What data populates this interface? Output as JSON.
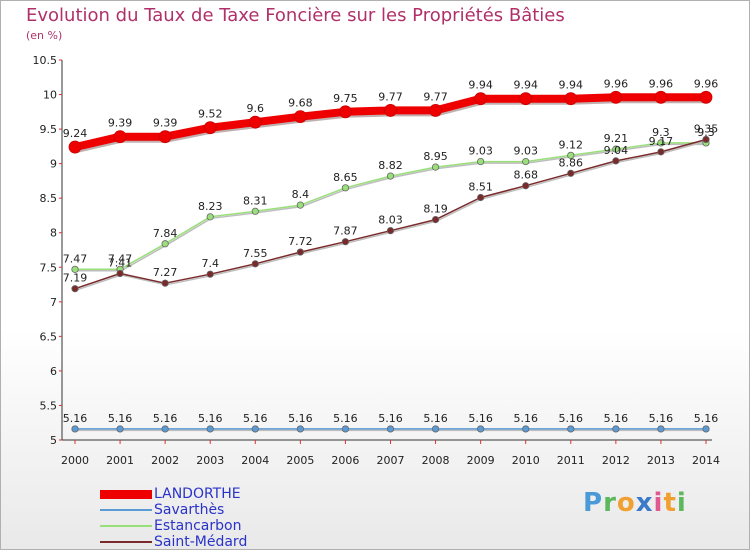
{
  "chart_data": {
    "type": "line",
    "title": "Evolution du Taux de Taxe Foncière sur les Propriétés Bâties",
    "subtitle": "(en %)",
    "x": [
      "2000",
      "2001",
      "2002",
      "2003",
      "2004",
      "2005",
      "2006",
      "2007",
      "2008",
      "2009",
      "2010",
      "2011",
      "2012",
      "2013",
      "2014"
    ],
    "ylim": [
      5,
      10.5
    ],
    "yticks": [
      "5",
      "5.5",
      "6",
      "6.5",
      "7",
      "7.5",
      "8",
      "8.5",
      "9",
      "9.5",
      "10",
      "10.5"
    ],
    "grid": false,
    "legend_position": "bottom-left",
    "series": [
      {
        "name": "LANDORTHE",
        "color": "#ee0000",
        "values": [
          9.24,
          9.39,
          9.39,
          9.52,
          9.6,
          9.68,
          9.75,
          9.77,
          9.77,
          9.94,
          9.94,
          9.94,
          9.96,
          9.96,
          9.96
        ],
        "labels": [
          "9.24",
          "9.39",
          "9.39",
          "9.52",
          "9.6",
          "9.68",
          "9.75",
          "9.77",
          "9.77",
          "9.94",
          "9.94",
          "9.94",
          "9.96",
          "9.96",
          "9.96"
        ]
      },
      {
        "name": "Savarthès",
        "color": "#5b9bd5",
        "values": [
          5.16,
          5.16,
          5.16,
          5.16,
          5.16,
          5.16,
          5.16,
          5.16,
          5.16,
          5.16,
          5.16,
          5.16,
          5.16,
          5.16,
          5.16
        ],
        "labels": [
          "5.16",
          "5.16",
          "5.16",
          "5.16",
          "5.16",
          "5.16",
          "5.16",
          "5.16",
          "5.16",
          "5.16",
          "5.16",
          "5.16",
          "5.16",
          "5.16",
          "5.16"
        ]
      },
      {
        "name": "Estancarbon",
        "color": "#99e07a",
        "values": [
          7.47,
          7.47,
          7.84,
          8.23,
          8.31,
          8.4,
          8.65,
          8.82,
          8.95,
          9.03,
          9.03,
          9.12,
          9.21,
          9.3,
          9.3
        ],
        "labels": [
          "7.47",
          "7.47",
          "7.84",
          "8.23",
          "8.31",
          "8.4",
          "8.65",
          "8.82",
          "8.95",
          "9.03",
          "9.03",
          "9.12",
          "9.21",
          "9.3",
          "9.3"
        ]
      },
      {
        "name": "Saint-Médard",
        "color": "#7a2a2a",
        "values": [
          7.19,
          7.41,
          7.27,
          7.4,
          7.55,
          7.72,
          7.87,
          8.03,
          8.19,
          8.51,
          8.68,
          8.86,
          9.04,
          9.17,
          9.35
        ],
        "labels": [
          "7.19",
          "7.41",
          "7.27",
          "7.4",
          "7.55",
          "7.72",
          "7.87",
          "8.03",
          "8.19",
          "8.51",
          "8.68",
          "8.86",
          "9.04",
          "9.17",
          "9.35"
        ]
      }
    ]
  },
  "brand": {
    "letters": [
      "P",
      "r",
      "o",
      "x",
      "i",
      "t",
      "i"
    ],
    "colors": [
      "#4a9ad8",
      "#5cb85c",
      "#f0a030",
      "#3a7ac8",
      "#e05a90",
      "#f0a030",
      "#5cb85c"
    ]
  }
}
